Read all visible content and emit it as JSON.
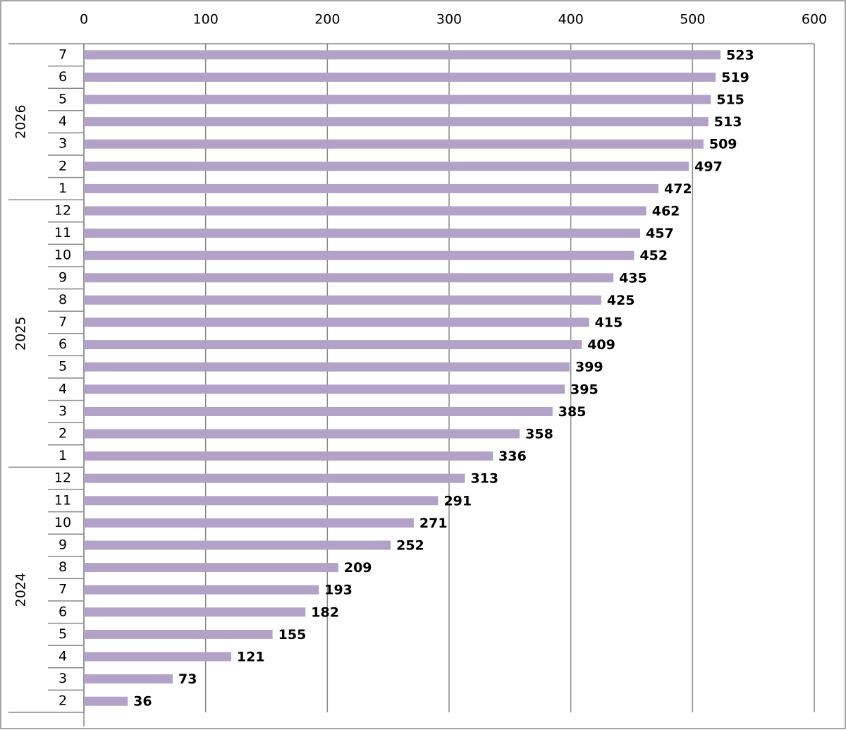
{
  "chart_data": {
    "type": "bar",
    "orientation": "horizontal",
    "color": "#b3a2c8",
    "xlim": [
      0,
      600
    ],
    "xticks": [
      0,
      100,
      200,
      300,
      400,
      500,
      600
    ],
    "grid": true,
    "groups": [
      {
        "name": "2026",
        "categories": [
          "7",
          "6",
          "5",
          "4",
          "3",
          "2",
          "1"
        ],
        "values": [
          523,
          519,
          515,
          513,
          509,
          497,
          472
        ]
      },
      {
        "name": "2025",
        "categories": [
          "12",
          "11",
          "10",
          "9",
          "8",
          "7",
          "6",
          "5",
          "4",
          "3",
          "2",
          "1"
        ],
        "values": [
          462,
          457,
          452,
          435,
          425,
          415,
          409,
          399,
          395,
          385,
          358,
          336
        ]
      },
      {
        "name": "2024",
        "categories": [
          "12",
          "11",
          "10",
          "9",
          "8",
          "7",
          "6",
          "5",
          "4",
          "3",
          "2"
        ],
        "values": [
          313,
          291,
          271,
          252,
          209,
          193,
          182,
          155,
          121,
          73,
          36
        ]
      }
    ]
  }
}
